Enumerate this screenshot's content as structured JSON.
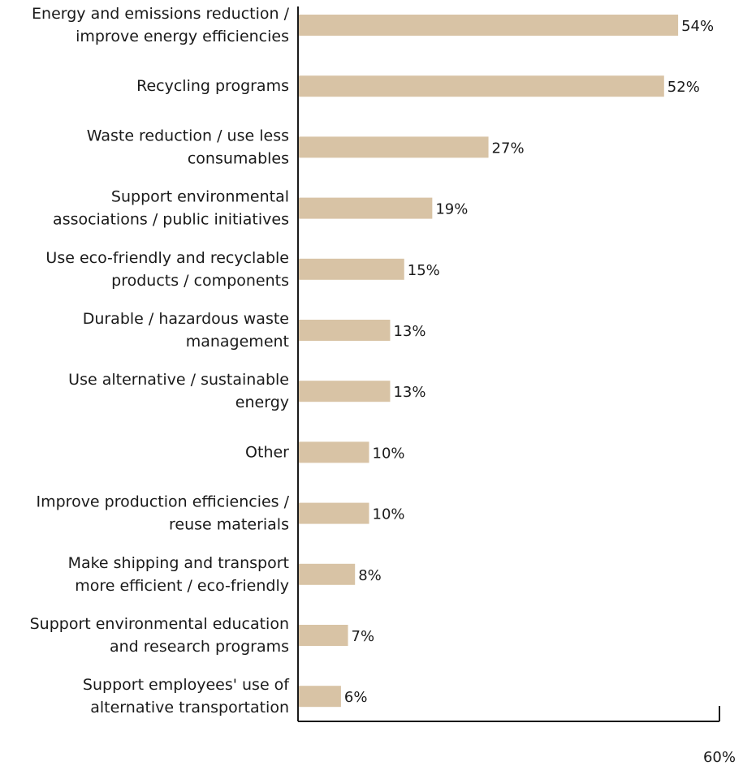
{
  "chart_data": {
    "type": "bar",
    "orientation": "horizontal",
    "categories": [
      [
        "Energy and emissions reduction /",
        "improve energy efficiencies"
      ],
      [
        "Recycling programs"
      ],
      [
        "Waste reduction / use less",
        "consumables"
      ],
      [
        "Support  environmental",
        "associations / public initiatives"
      ],
      [
        "Use eco-friendly and recyclable",
        "products / components"
      ],
      [
        "Durable / hazardous waste",
        "management"
      ],
      [
        "Use alternative / sustainable",
        "energy"
      ],
      [
        "Other"
      ],
      [
        "Improve production efficiencies /",
        "reuse materials"
      ],
      [
        "Make shipping and transport",
        "more efficient / eco-friendly"
      ],
      [
        "Support environmental education",
        "and research programs"
      ],
      [
        "Support employees' use of",
        "alternative transportation"
      ]
    ],
    "values": [
      54,
      52,
      27,
      19,
      15,
      13,
      13,
      10,
      10,
      8,
      7,
      6
    ],
    "value_labels": [
      "54%",
      "52%",
      "27%",
      "19%",
      "15%",
      "13%",
      "13%",
      "10%",
      "10%",
      "8%",
      "7%",
      "6%"
    ],
    "xlim": [
      0,
      60
    ],
    "x_ticks": [
      {
        "value": 60,
        "label": "60%"
      }
    ],
    "title": "",
    "xlabel": "",
    "ylabel": "",
    "grid": false,
    "bar_color": "#d8c3a5",
    "axis_color": "#1a1a1a"
  }
}
